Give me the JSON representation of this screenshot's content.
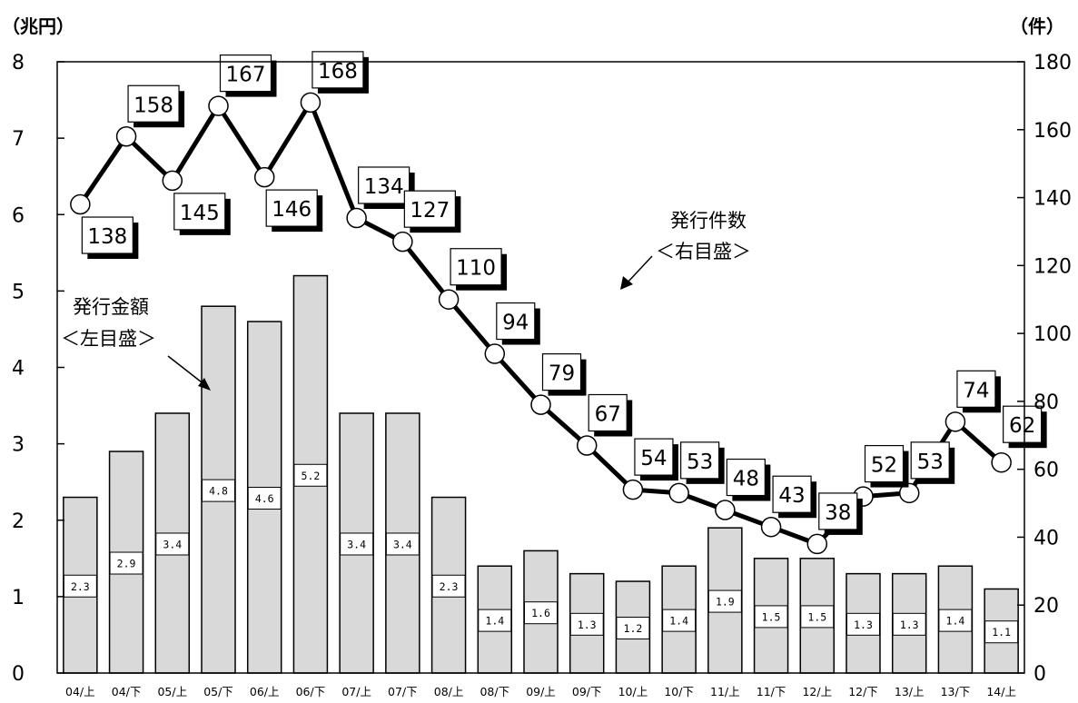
{
  "chart_data": {
    "type": "bar+line",
    "categories": [
      "04/上",
      "04/下",
      "05/上",
      "05/下",
      "06/上",
      "06/下",
      "07/上",
      "07/下",
      "08/上",
      "08/下",
      "09/上",
      "09/下",
      "10/上",
      "10/下",
      "11/上",
      "11/下",
      "12/上",
      "12/下",
      "13/上",
      "13/下",
      "14/上"
    ],
    "bar_series": {
      "name": "発行金額",
      "axis": "left",
      "values": [
        2.3,
        2.9,
        3.4,
        4.8,
        4.6,
        5.2,
        3.4,
        3.4,
        2.3,
        1.4,
        1.6,
        1.3,
        1.2,
        1.4,
        1.9,
        1.5,
        1.5,
        1.3,
        1.3,
        1.4,
        1.1
      ],
      "labels": [
        "2.3",
        "2.9",
        "3.4",
        "4.8",
        "4.6",
        "5.2",
        "3.4",
        "3.4",
        "2.3",
        "1.4",
        "1.6",
        "1.3",
        "1.2",
        "1.4",
        "1.9",
        "1.5",
        "1.5",
        "1.3",
        "1.3",
        "1.4",
        "1.1"
      ],
      "color": "#d9d9d9"
    },
    "line_series": {
      "name": "発行件数",
      "axis": "right",
      "values": [
        138,
        158,
        145,
        167,
        146,
        168,
        134,
        127,
        110,
        94,
        79,
        67,
        54,
        53,
        48,
        43,
        38,
        52,
        53,
        74,
        62
      ],
      "color": "#000000"
    },
    "left_axis": {
      "unit": "（兆円）",
      "ylim": [
        0,
        8
      ],
      "ticks": [
        "0",
        "1",
        "2",
        "3",
        "4",
        "5",
        "6",
        "7",
        "8"
      ]
    },
    "right_axis": {
      "unit": "（件）",
      "ylim": [
        0,
        180
      ],
      "ticks": [
        "0",
        "20",
        "40",
        "60",
        "80",
        "100",
        "120",
        "140",
        "160",
        "180"
      ]
    },
    "annotations": {
      "bar_label_line1": "発行金額",
      "bar_label_line2": "＜左目盛＞",
      "line_label_line1": "発行件数",
      "line_label_line2": "＜右目盛＞"
    },
    "grid": false
  }
}
